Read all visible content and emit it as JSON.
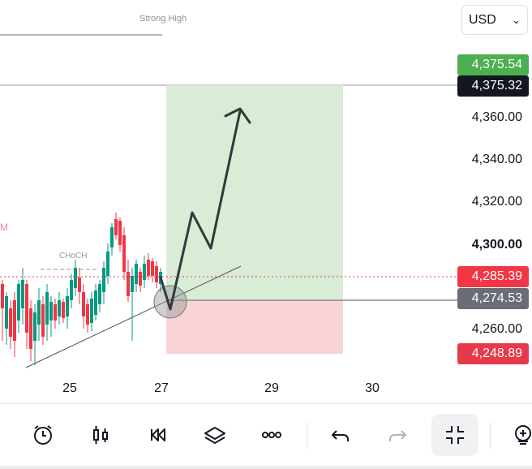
{
  "header": {
    "strong_high_label": "Strong High",
    "currency": {
      "selected": "USD"
    }
  },
  "chart": {
    "choch_label": "CHoCH",
    "partial_label": "M",
    "price_axis": {
      "ticks": [
        "4,360.00",
        "4,340.00",
        "4,320.00",
        "4,300.00",
        "4,260.00"
      ],
      "tags": {
        "take_profit": "4,375.54",
        "current_high": "4,375.32",
        "last_price": "4,285.39",
        "entry": "4,274.53",
        "stop_loss": "4,248.89"
      }
    },
    "time_axis": {
      "ticks": [
        "25",
        "27",
        "29",
        "30"
      ]
    },
    "colors": {
      "bull": "#089981",
      "bear": "#f23645",
      "profit_zone": "#d8ecd6",
      "loss_zone": "#f8d4d7",
      "take_profit_tag": "#4caf50",
      "current_high_tag": "#131722",
      "last_price_tag": "#f23645",
      "entry_tag": "#6a6d78",
      "stop_loss_tag": "#e8394a",
      "arrow": "#2f3b3a"
    }
  },
  "toolbar": {
    "buttons": [
      {
        "name": "alarm-clock-icon"
      },
      {
        "name": "candlestick-icon"
      },
      {
        "name": "replay-icon"
      },
      {
        "name": "layers-icon"
      },
      {
        "name": "more-icon"
      },
      {
        "name": "undo-icon"
      },
      {
        "name": "redo-icon"
      },
      {
        "name": "collapse-icon"
      },
      {
        "name": "add-indicator-icon"
      }
    ]
  }
}
